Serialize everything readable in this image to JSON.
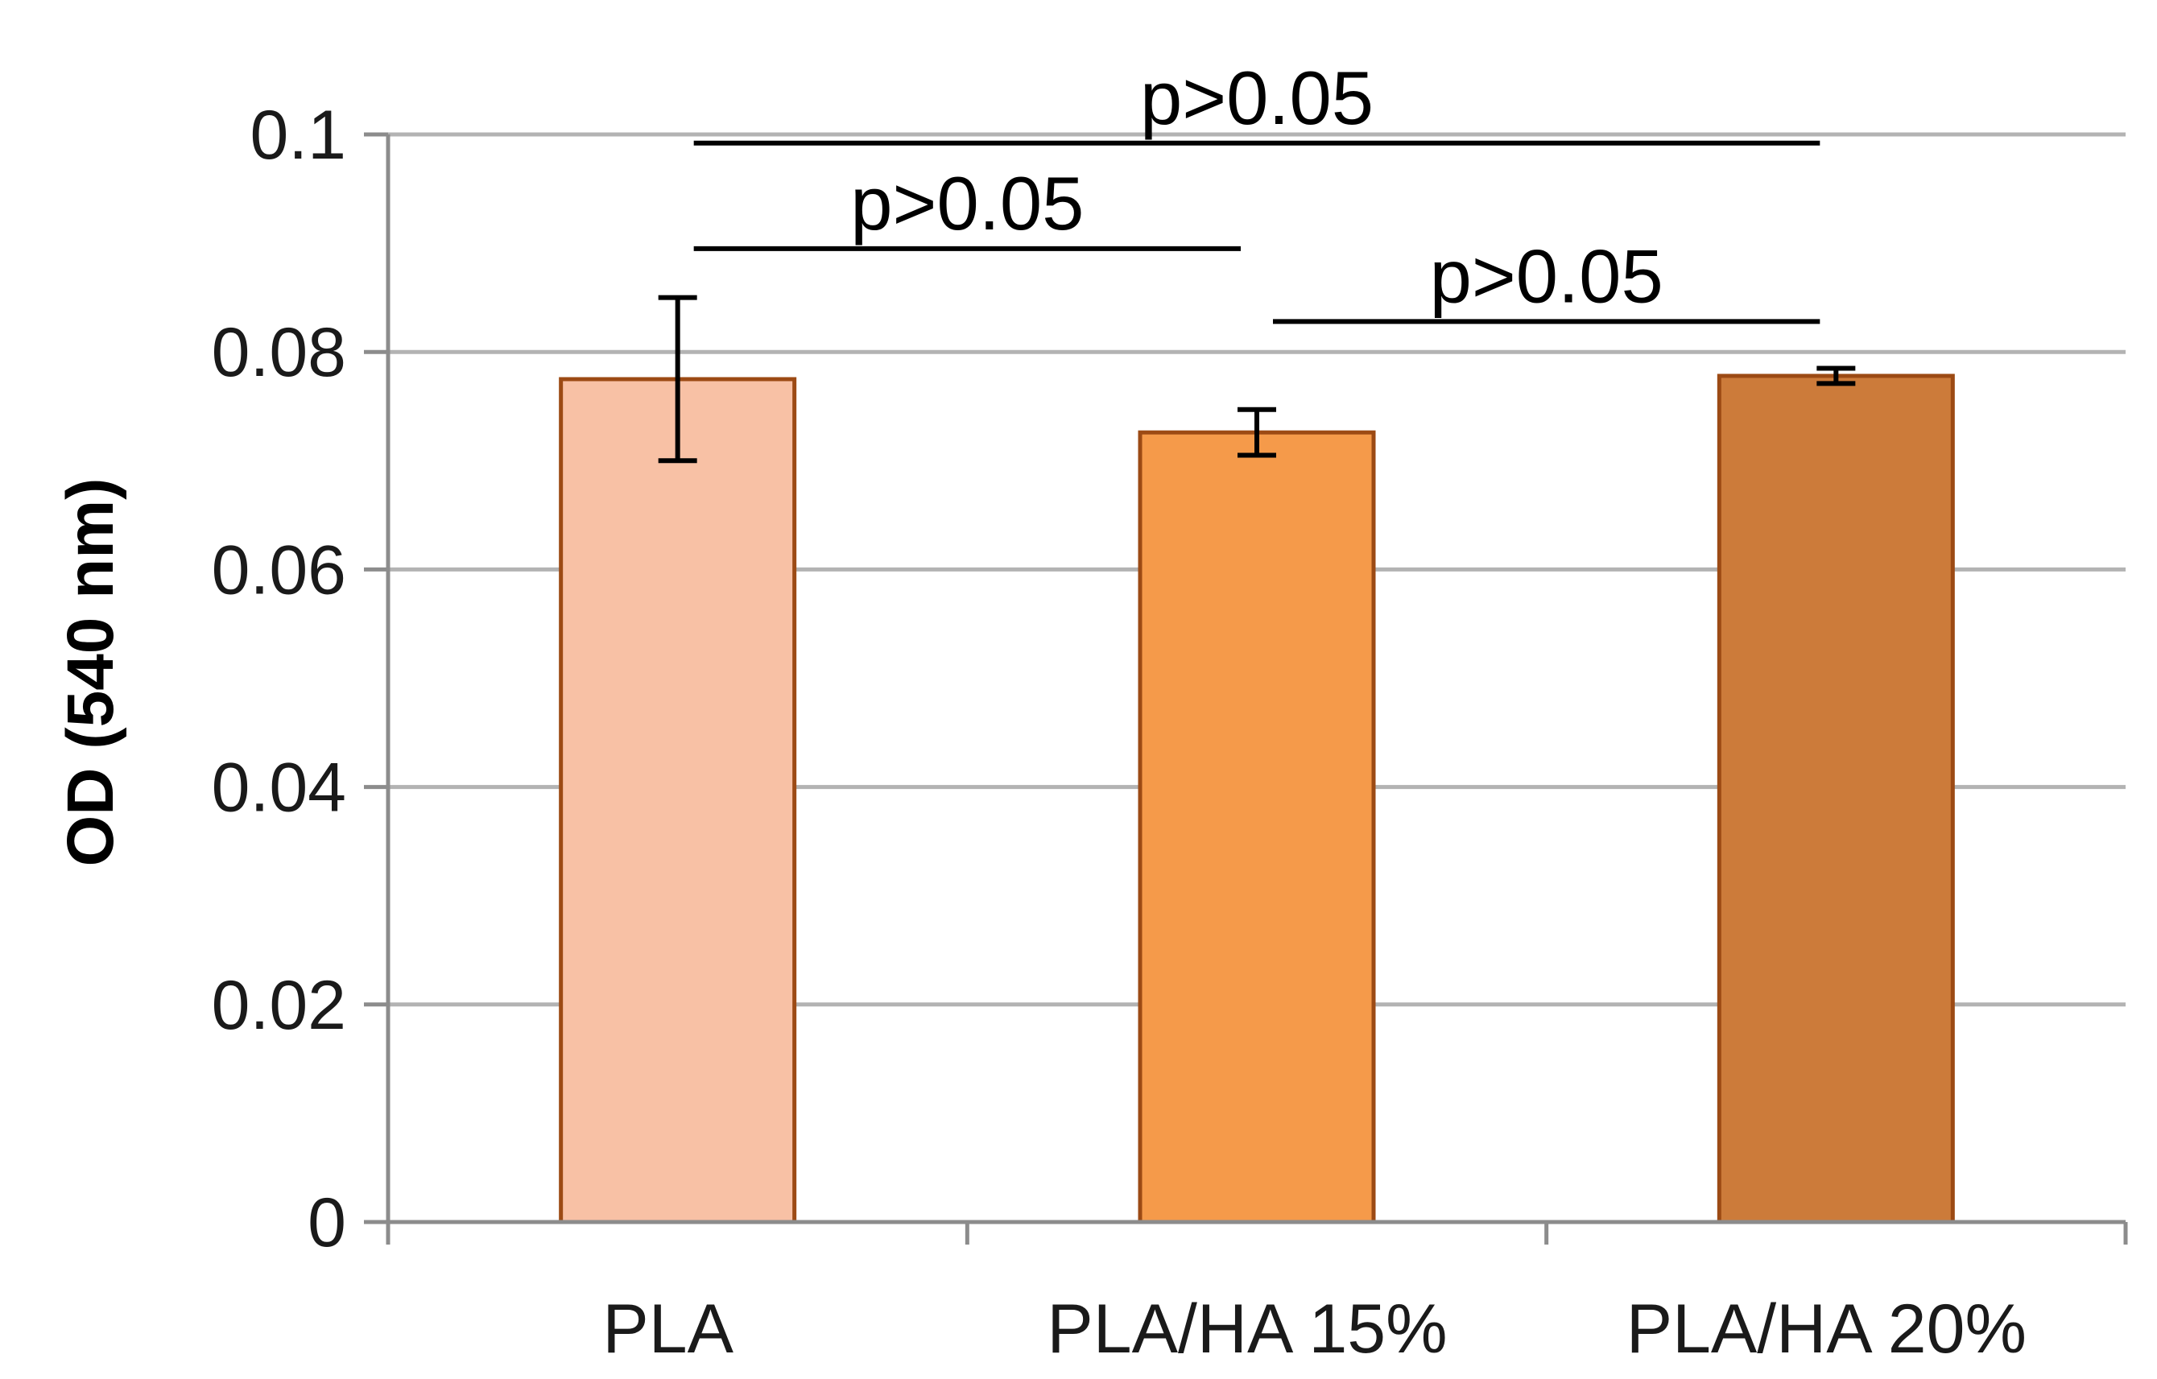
{
  "chart_data": {
    "type": "bar",
    "title": "",
    "xlabel": "",
    "ylabel": "OD (540 nm)",
    "ylim": [
      0,
      0.1
    ],
    "yticks": [
      0,
      0.02,
      0.04,
      0.06,
      0.08,
      0.1
    ],
    "ytick_labels": [
      "0",
      "0.02",
      "0.04",
      "0.06",
      "0.08",
      "0.1"
    ],
    "grid": true,
    "categories": [
      "PLA",
      "PLA/HA 15%",
      "PLA/HA 20%"
    ],
    "values": [
      0.0775,
      0.0726,
      0.0778
    ],
    "errors": [
      0.0075,
      0.0021,
      0.0007
    ],
    "colors": [
      "#f8c1a5",
      "#f59a4a",
      "#cc7b3a"
    ],
    "edge_color": "#9c4a14",
    "annotations": [
      {
        "label": "p>0.05",
        "from": 0,
        "to": 1,
        "level": 0.0895
      },
      {
        "label": "p>0.05",
        "from": 1,
        "to": 2,
        "level": 0.0828
      },
      {
        "label": "p>0.05",
        "from": 0,
        "to": 2,
        "level": 0.0992
      }
    ]
  }
}
